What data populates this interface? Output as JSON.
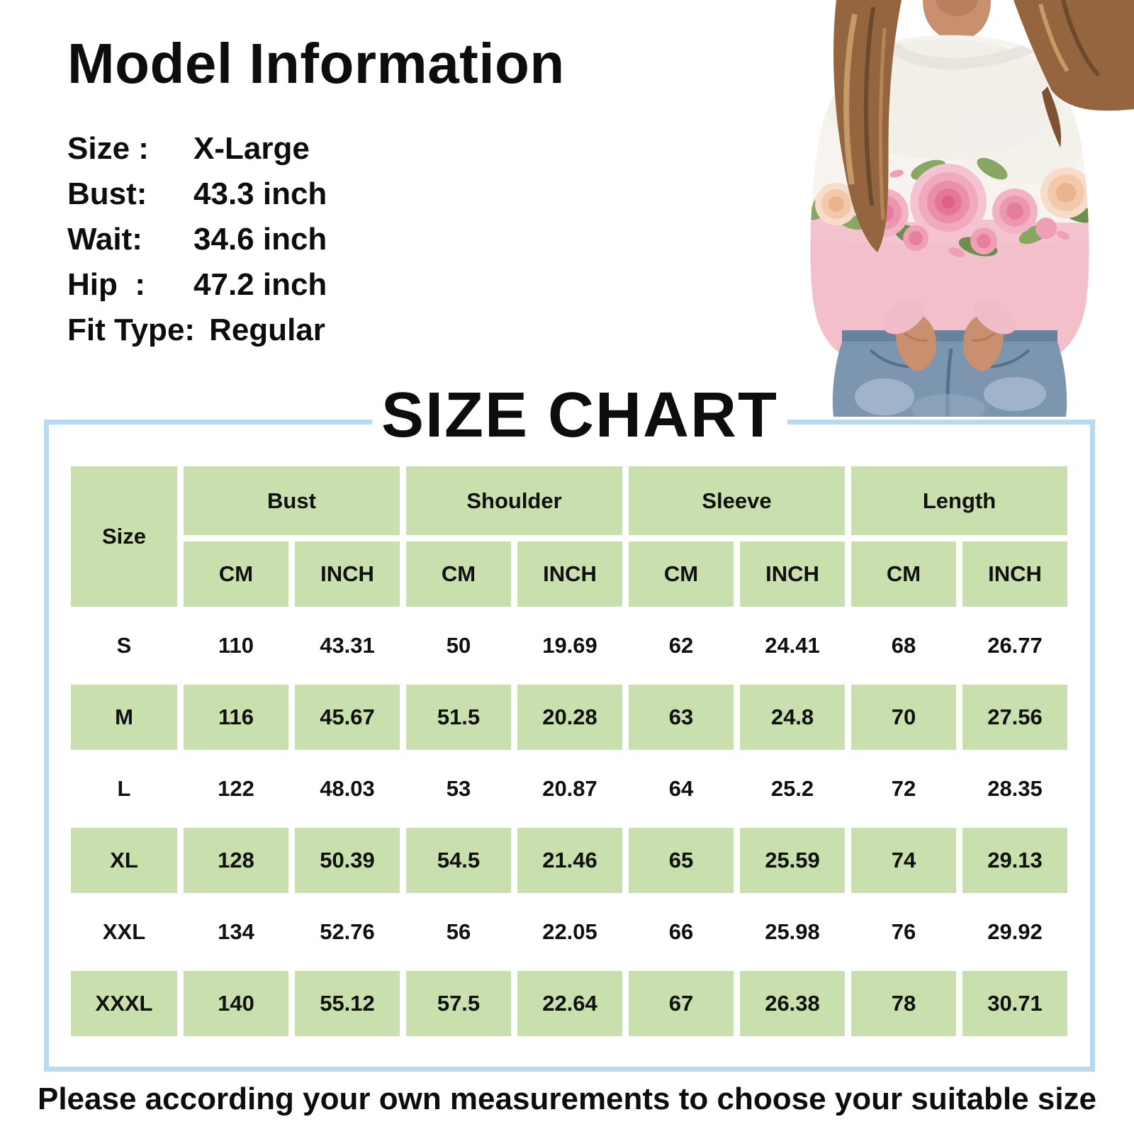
{
  "model_info": {
    "title": "Model Information",
    "lines": [
      {
        "label": "Size :",
        "value": "X-Large"
      },
      {
        "label": "Bust:",
        "value": "43.3 inch"
      },
      {
        "label": "Wait:",
        "value": "34.6 inch"
      },
      {
        "label": "Hip  :",
        "value": "47.2 inch"
      },
      {
        "label": "Fit Type:",
        "value": "Regular"
      }
    ]
  },
  "photo": {
    "alt": "Model wearing a white and pink crewneck sweatshirt with a rose floral band, hands in pockets of ripped blue jeans"
  },
  "size_chart": {
    "title": "SIZE CHART",
    "size_header": "Size",
    "column_groups": [
      "Bust",
      "Shoulder",
      "Sleeve",
      "Length"
    ],
    "sub_headers": [
      "CM",
      "INCH"
    ],
    "rows": [
      {
        "size": "S",
        "values": [
          "110",
          "43.31",
          "50",
          "19.69",
          "62",
          "24.41",
          "68",
          "26.77"
        ]
      },
      {
        "size": "M",
        "values": [
          "116",
          "45.67",
          "51.5",
          "20.28",
          "63",
          "24.8",
          "70",
          "27.56"
        ]
      },
      {
        "size": "L",
        "values": [
          "122",
          "48.03",
          "53",
          "20.87",
          "64",
          "25.2",
          "72",
          "28.35"
        ]
      },
      {
        "size": "XL",
        "values": [
          "128",
          "50.39",
          "54.5",
          "21.46",
          "65",
          "25.59",
          "74",
          "29.13"
        ]
      },
      {
        "size": "XXL",
        "values": [
          "134",
          "52.76",
          "56",
          "22.05",
          "66",
          "25.98",
          "76",
          "29.92"
        ]
      },
      {
        "size": "XXXL",
        "values": [
          "140",
          "55.12",
          "57.5",
          "22.64",
          "67",
          "26.38",
          "78",
          "30.71"
        ]
      }
    ]
  },
  "footer": {
    "note": "Please according your own measurements to choose your suitable size"
  },
  "colors": {
    "header_green": "#c9dfad",
    "panel_border_blue": "#b8d9ee",
    "sweatshirt_pink": "#f3c3ce",
    "text_black": "#0d0d0d"
  },
  "chart_data": {
    "type": "table",
    "title": "SIZE CHART",
    "columns": [
      "Size",
      "Bust CM",
      "Bust INCH",
      "Shoulder CM",
      "Shoulder INCH",
      "Sleeve CM",
      "Sleeve INCH",
      "Length CM",
      "Length INCH"
    ],
    "rows": [
      [
        "S",
        110,
        43.31,
        50,
        19.69,
        62,
        24.41,
        68,
        26.77
      ],
      [
        "M",
        116,
        45.67,
        51.5,
        20.28,
        63,
        24.8,
        70,
        27.56
      ],
      [
        "L",
        122,
        48.03,
        53,
        20.87,
        64,
        25.2,
        72,
        28.35
      ],
      [
        "XL",
        128,
        50.39,
        54.5,
        21.46,
        65,
        25.59,
        74,
        29.13
      ],
      [
        "XXL",
        134,
        52.76,
        56,
        22.05,
        66,
        25.98,
        76,
        29.92
      ],
      [
        "XXXL",
        140,
        55.12,
        57.5,
        22.64,
        67,
        26.38,
        78,
        30.71
      ]
    ]
  }
}
